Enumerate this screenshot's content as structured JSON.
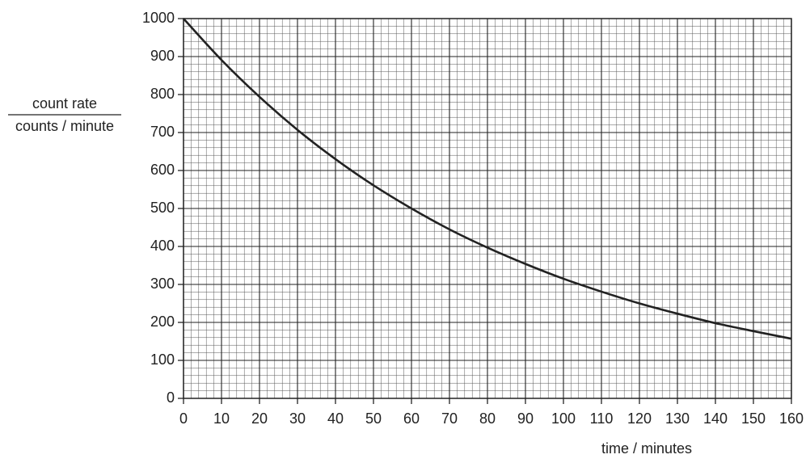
{
  "chart_data": {
    "type": "line",
    "ylabel": {
      "numerator": "count rate",
      "denominator": "counts / minute"
    },
    "xlabel": "time / minutes",
    "x": [
      0,
      10,
      20,
      30,
      40,
      50,
      60,
      70,
      80,
      90,
      100,
      110,
      120,
      130,
      140,
      150,
      160
    ],
    "series": [
      {
        "color": "#222222",
        "values": [
          1000,
          891,
          794,
          707,
          630,
          561,
          500,
          445,
          397,
          354,
          315,
          281,
          250,
          223,
          198,
          177,
          157
        ]
      }
    ],
    "xlim": [
      0,
      160
    ],
    "ylim": [
      0,
      1000
    ],
    "xticks": [
      0,
      10,
      20,
      30,
      40,
      50,
      60,
      70,
      80,
      90,
      100,
      110,
      120,
      130,
      140,
      150,
      160
    ],
    "yticks": [
      0,
      100,
      200,
      300,
      400,
      500,
      600,
      700,
      800,
      900,
      1000
    ],
    "grid": true,
    "minor_divisions": 5
  }
}
